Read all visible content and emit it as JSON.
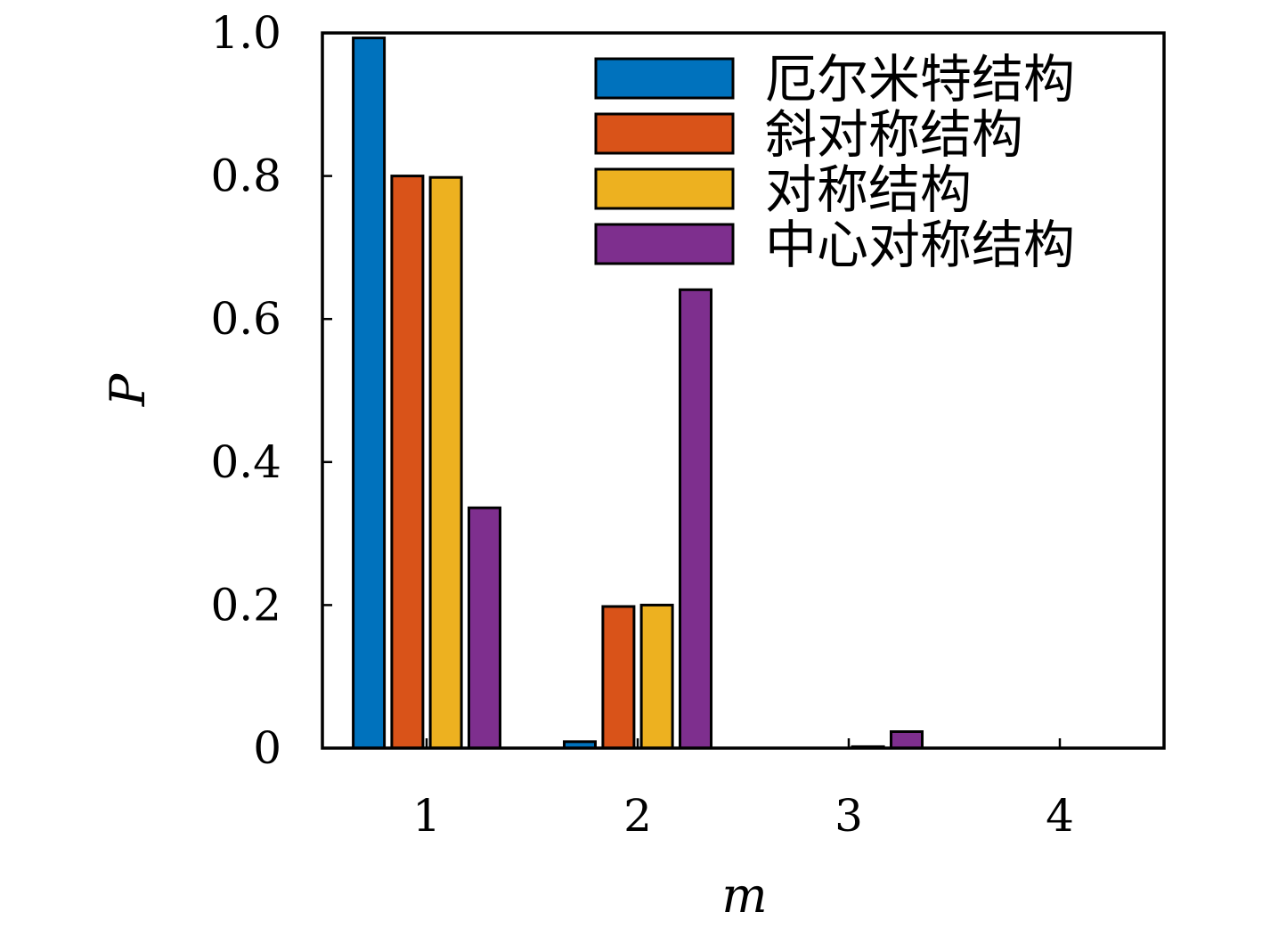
{
  "chart_data": {
    "type": "bar",
    "title": "",
    "xlabel": "m",
    "ylabel": "P",
    "categories": [
      "1",
      "2",
      "3",
      "4"
    ],
    "ylim": [
      0,
      1.0
    ],
    "yticks": [
      "0",
      "0.2",
      "0.4",
      "0.6",
      "0.8",
      "1.0"
    ],
    "ytick_values": [
      0,
      0.2,
      0.4,
      0.6,
      0.8,
      1.0
    ],
    "grid": false,
    "legend_position": "top-right",
    "series": [
      {
        "name": "厄尔米特结构",
        "color": "#0072BD",
        "values": [
          0.993,
          0.009,
          0.0,
          0.0
        ]
      },
      {
        "name": "斜对称结构",
        "color": "#D95319",
        "values": [
          0.8,
          0.198,
          0.0,
          0.0
        ]
      },
      {
        "name": "对称结构",
        "color": "#EDB120",
        "values": [
          0.798,
          0.2,
          0.002,
          0.0
        ]
      },
      {
        "name": "中心对称结构",
        "color": "#7E2F8E",
        "values": [
          0.336,
          0.641,
          0.023,
          0.0
        ]
      }
    ]
  }
}
